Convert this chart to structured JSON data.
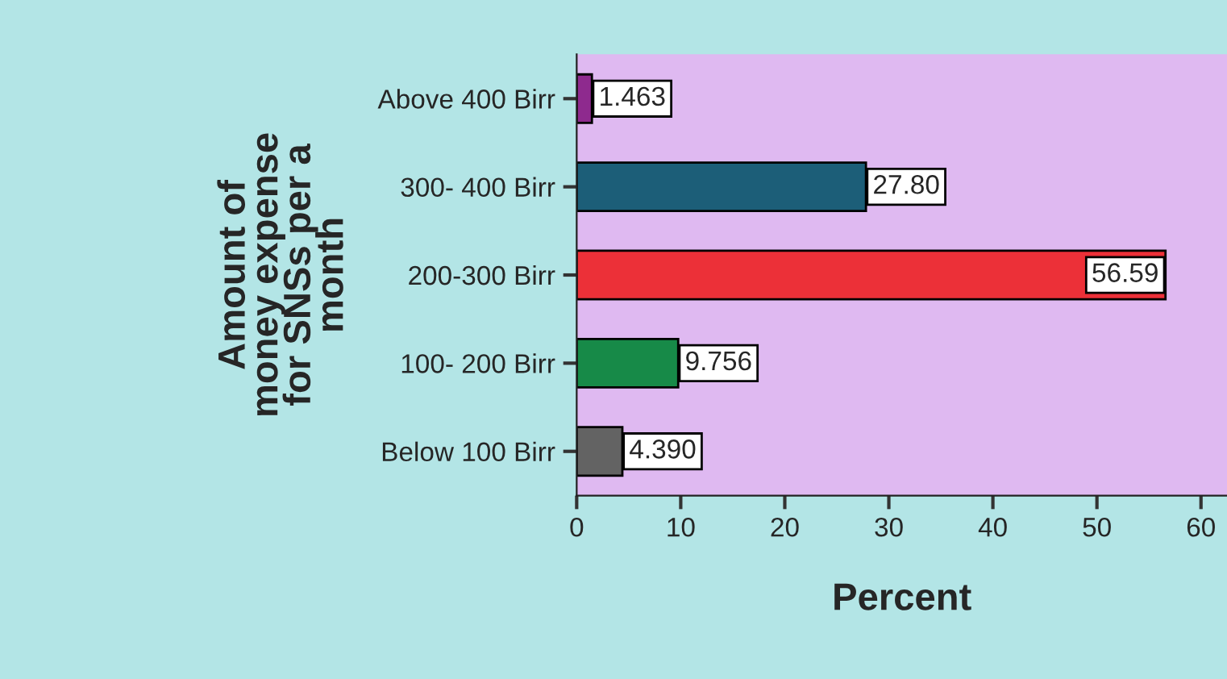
{
  "chart_data": {
    "type": "bar",
    "orientation": "horizontal",
    "ylabel": "Amount of\nmoney expense\nfor SNSs per a\nmonth",
    "xlabel": "Percent",
    "categories": [
      "Above 400 Birr",
      "300- 400 Birr",
      "200-300 Birr",
      "100- 200 Birr",
      "Below 100 Birr"
    ],
    "values": [
      1.463,
      27.8,
      56.59,
      9.756,
      4.39
    ],
    "colors": [
      "#8e2a8e",
      "#1c5e78",
      "#ec3038",
      "#178a48",
      "#636363"
    ],
    "value_labels": [
      "1.463",
      "27.80",
      "56.59",
      "9.756",
      "4.390"
    ],
    "xlim": [
      0,
      62.5
    ],
    "xticks": [
      0,
      10,
      20,
      30,
      40,
      50,
      60
    ],
    "grid": false
  }
}
